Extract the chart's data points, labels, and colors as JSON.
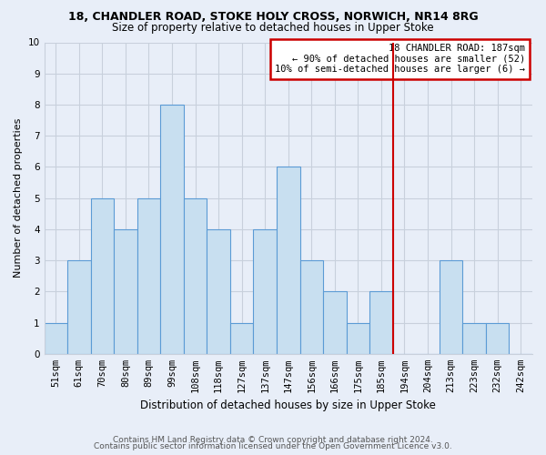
{
  "title": "18, CHANDLER ROAD, STOKE HOLY CROSS, NORWICH, NR14 8RG",
  "subtitle": "Size of property relative to detached houses in Upper Stoke",
  "xlabel": "Distribution of detached houses by size in Upper Stoke",
  "ylabel": "Number of detached properties",
  "bins": [
    "51sqm",
    "61sqm",
    "70sqm",
    "80sqm",
    "89sqm",
    "99sqm",
    "108sqm",
    "118sqm",
    "127sqm",
    "137sqm",
    "147sqm",
    "156sqm",
    "166sqm",
    "175sqm",
    "185sqm",
    "194sqm",
    "204sqm",
    "213sqm",
    "223sqm",
    "232sqm",
    "242sqm"
  ],
  "values": [
    1,
    3,
    5,
    4,
    5,
    8,
    5,
    4,
    1,
    4,
    6,
    3,
    2,
    1,
    2,
    0,
    0,
    3,
    1,
    1,
    0
  ],
  "bar_color": "#c8dff0",
  "bar_edge_color": "#5b9bd5",
  "vline_x_idx": 14,
  "vline_color": "#cc0000",
  "annotation_title": "18 CHANDLER ROAD: 187sqm",
  "annotation_line1": "← 90% of detached houses are smaller (52)",
  "annotation_line2": "10% of semi-detached houses are larger (6) →",
  "annotation_box_color": "#ffffff",
  "annotation_box_edge_color": "#cc0000",
  "ylim": [
    0,
    10
  ],
  "yticks": [
    0,
    1,
    2,
    3,
    4,
    5,
    6,
    7,
    8,
    9,
    10
  ],
  "footer1": "Contains HM Land Registry data © Crown copyright and database right 2024.",
  "footer2": "Contains public sector information licensed under the Open Government Licence v3.0.",
  "bg_color": "#e8eef8",
  "grid_color": "#c8d0dc",
  "title_fontsize": 9,
  "subtitle_fontsize": 8.5,
  "ylabel_fontsize": 8,
  "xlabel_fontsize": 8.5,
  "tick_fontsize": 7.5,
  "footer_fontsize": 6.5,
  "annot_fontsize": 7.5
}
